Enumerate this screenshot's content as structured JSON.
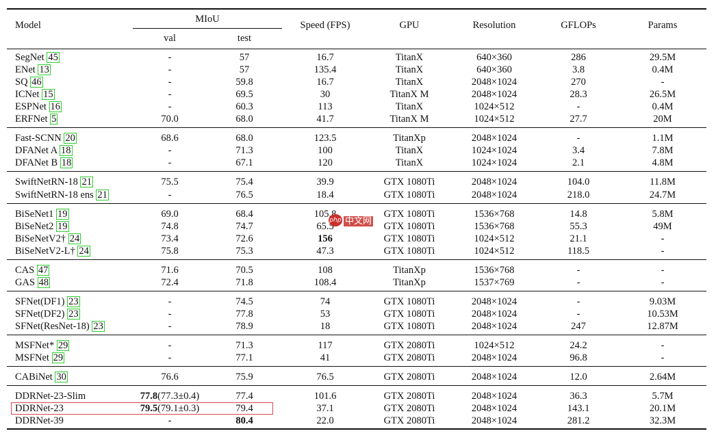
{
  "headers": {
    "model": "Model",
    "miou": "MIoU",
    "val": "val",
    "test": "test",
    "speed": "Speed (FPS)",
    "gpu": "GPU",
    "resolution": "Resolution",
    "gflops": "GFLOPs",
    "params": "Params"
  },
  "groups": [
    [
      {
        "name": "SegNet ",
        "ref": "45",
        "val": "-",
        "test": "57",
        "speed": "16.7",
        "gpu": "TitanX",
        "res": "640×360",
        "gflops": "286",
        "params": "29.5M"
      },
      {
        "name": "ENet ",
        "ref": "13",
        "val": "-",
        "test": "57",
        "speed": "135.4",
        "gpu": "TitanX",
        "res": "640×360",
        "gflops": "3.8",
        "params": "0.4M"
      },
      {
        "name": "SQ ",
        "ref": "46",
        "val": "-",
        "test": "59.8",
        "speed": "16.7",
        "gpu": "TitanX",
        "res": "2048×1024",
        "gflops": "270",
        "params": "-"
      },
      {
        "name": "ICNet ",
        "ref": "15",
        "val": "-",
        "test": "69.5",
        "speed": "30",
        "gpu": "TitanX M",
        "res": "2048×1024",
        "gflops": "28.3",
        "params": "26.5M"
      },
      {
        "name": "ESPNet ",
        "ref": "16",
        "val": "-",
        "test": "60.3",
        "speed": "113",
        "gpu": "TitanX",
        "res": "1024×512",
        "gflops": "-",
        "params": "0.4M"
      },
      {
        "name": "ERFNet ",
        "ref": "5",
        "val": "70.0",
        "test": "68.0",
        "speed": "41.7",
        "gpu": "TitanX M",
        "res": "1024×512",
        "gflops": "27.7",
        "params": "20M"
      }
    ],
    [
      {
        "name": "Fast-SCNN ",
        "ref": "20",
        "val": "68.6",
        "test": "68.0",
        "speed": "123.5",
        "gpu": "TitanXp",
        "res": "2048×1024",
        "gflops": "-",
        "params": "1.1M"
      },
      {
        "name": "DFANet A ",
        "ref": "18",
        "val": "-",
        "test": "71.3",
        "speed": "100",
        "gpu": "TitanX",
        "res": "1024×1024",
        "gflops": "3.4",
        "params": "7.8M"
      },
      {
        "name": "DFANet B ",
        "ref": "18",
        "val": "-",
        "test": "67.1",
        "speed": "120",
        "gpu": "TitanX",
        "res": "1024×1024",
        "gflops": "2.1",
        "params": "4.8M"
      }
    ],
    [
      {
        "name": "SwiftNetRN-18 ",
        "ref": "21",
        "val": "75.5",
        "test": "75.4",
        "speed": "39.9",
        "gpu": "GTX 1080Ti",
        "res": "2048×1024",
        "gflops": "104.0",
        "params": "11.8M"
      },
      {
        "name": "SwiftNetRN-18 ens ",
        "ref": "21",
        "val": "-",
        "test": "76.5",
        "speed": "18.4",
        "gpu": "GTX 1080Ti",
        "res": "2048×1024",
        "gflops": "218.0",
        "params": "24.7M"
      }
    ],
    [
      {
        "name": "BiSeNet1 ",
        "ref": "19",
        "val": "69.0",
        "test": "68.4",
        "speed": "105.8",
        "gpu": "GTX 1080Ti",
        "res": "1536×768",
        "gflops": "14.8",
        "params": "5.8M"
      },
      {
        "name": "BiSeNet2 ",
        "ref": "19",
        "val": "74.8",
        "test": "74.7",
        "speed": "65.5",
        "gpu": "GTX 1080Ti",
        "res": "1536×768",
        "gflops": "55.3",
        "params": "49M"
      },
      {
        "name": "BiSeNetV2† ",
        "ref": "24",
        "val": "73.4",
        "test": "72.6",
        "speed": "156",
        "speedBold": true,
        "gpu": "GTX 1080Ti",
        "res": "1024×512",
        "gflops": "21.1",
        "params": "-"
      },
      {
        "name": "BiSeNetV2-L† ",
        "ref": "24",
        "val": "75.8",
        "test": "75.3",
        "speed": "47.3",
        "gpu": "GTX 1080Ti",
        "res": "1024×512",
        "gflops": "118.5",
        "params": "-"
      }
    ],
    [
      {
        "name": "CAS ",
        "ref": "47",
        "val": "71.6",
        "test": "70.5",
        "speed": "108",
        "gpu": "TitanXp",
        "res": "1536×768",
        "gflops": "-",
        "params": "-"
      },
      {
        "name": "GAS ",
        "ref": "48",
        "val": "72.4",
        "test": "71.8",
        "speed": "108.4",
        "gpu": "TitanXp",
        "res": "1537×769",
        "gflops": "-",
        "params": "-"
      }
    ],
    [
      {
        "name": "SFNet(DF1) ",
        "ref": "23",
        "val": "-",
        "test": "74.5",
        "speed": "74",
        "gpu": "GTX 1080Ti",
        "res": "2048×1024",
        "gflops": "-",
        "params": "9.03M"
      },
      {
        "name": "SFNet(DF2) ",
        "ref": "23",
        "val": "-",
        "test": "77.8",
        "speed": "53",
        "gpu": "GTX 1080Ti",
        "res": "2048×1024",
        "gflops": "-",
        "params": "10.53M"
      },
      {
        "name": "SFNet(ResNet-18) ",
        "ref": "23",
        "val": "-",
        "test": "78.9",
        "speed": "18",
        "gpu": "GTX 1080Ti",
        "res": "2048×1024",
        "gflops": "247",
        "params": "12.87M"
      }
    ],
    [
      {
        "name": "MSFNet* ",
        "ref": "29",
        "val": "-",
        "test": "71.3",
        "speed": "117",
        "gpu": "GTX 2080Ti",
        "res": "1024×512",
        "gflops": "24.2",
        "params": "-"
      },
      {
        "name": "MSFNet ",
        "ref": "29",
        "val": "-",
        "test": "77.1",
        "speed": "41",
        "gpu": "GTX 2080Ti",
        "res": "2048×1024",
        "gflops": "96.8",
        "params": "-"
      }
    ],
    [
      {
        "name": "CABiNet ",
        "ref": "30",
        "val": "76.6",
        "test": "75.9",
        "speed": "76.5",
        "gpu": "GTX 2080Ti",
        "res": "2048×1024",
        "gflops": "12.0",
        "params": "2.64M"
      }
    ],
    [
      {
        "name": "DDRNet-23-Slim",
        "ref": "",
        "valBold": "77.8",
        "val": "(77.3±0.4)",
        "test": "77.4",
        "speed": "101.6",
        "gpu": "GTX 2080Ti",
        "res": "2048×1024",
        "gflops": "36.3",
        "params": "5.7M"
      },
      {
        "name": "DDRNet-23",
        "ref": "",
        "valBold": "79.5",
        "val": "(79.1±0.3)",
        "test": "79.4",
        "speed": "37.1",
        "gpu": "GTX 2080Ti",
        "res": "2048×1024",
        "gflops": "143.1",
        "params": "20.1M",
        "highlight": true
      },
      {
        "name": "DDRNet-39",
        "ref": "",
        "val": "-",
        "test": "80.4",
        "testBold": true,
        "speed": "22.0",
        "gpu": "GTX 2080Ti",
        "res": "2048×1024",
        "gflops": "281.2",
        "params": "32.3M"
      }
    ]
  ],
  "watermark": {
    "logo": "php",
    "text": "中文网"
  },
  "colors": {
    "ref_box": "#2ecc2e",
    "highlight_box": "#d6474d",
    "watermark": "#c9302c"
  }
}
